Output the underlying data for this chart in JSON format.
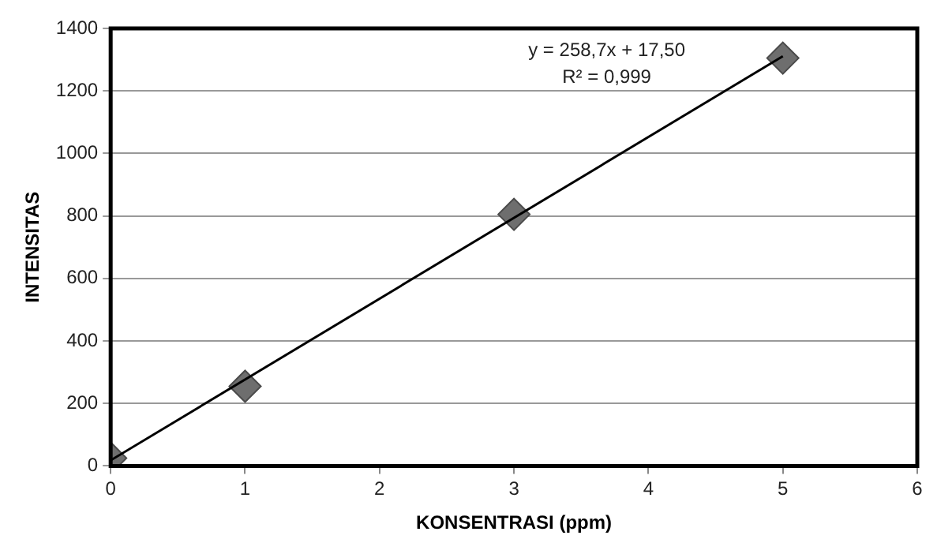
{
  "chart_data": {
    "type": "scatter",
    "xlabel": "KONSENTRASI (ppm)",
    "ylabel": "INTENSITAS",
    "x": [
      0,
      1,
      3,
      5
    ],
    "series": [
      {
        "color": "#6e6e6e",
        "values": [
          25,
          255,
          805,
          1305
        ],
        "marker": "diamond"
      },
      {
        "type": "line",
        "color": "#000000",
        "x": [
          0,
          5
        ],
        "values": [
          18,
          1311
        ],
        "marker": "none"
      }
    ],
    "xlim": [
      0,
      6
    ],
    "xticks": [
      0,
      1,
      2,
      3,
      4,
      5,
      6
    ],
    "ylim": [
      0,
      1400
    ],
    "yticks": [
      0,
      200,
      400,
      600,
      800,
      1000,
      1200,
      1400
    ],
    "grid": "y",
    "legend": false,
    "annotations": [
      "y = 258,7x + 17,50",
      "R² = 0,999"
    ]
  }
}
